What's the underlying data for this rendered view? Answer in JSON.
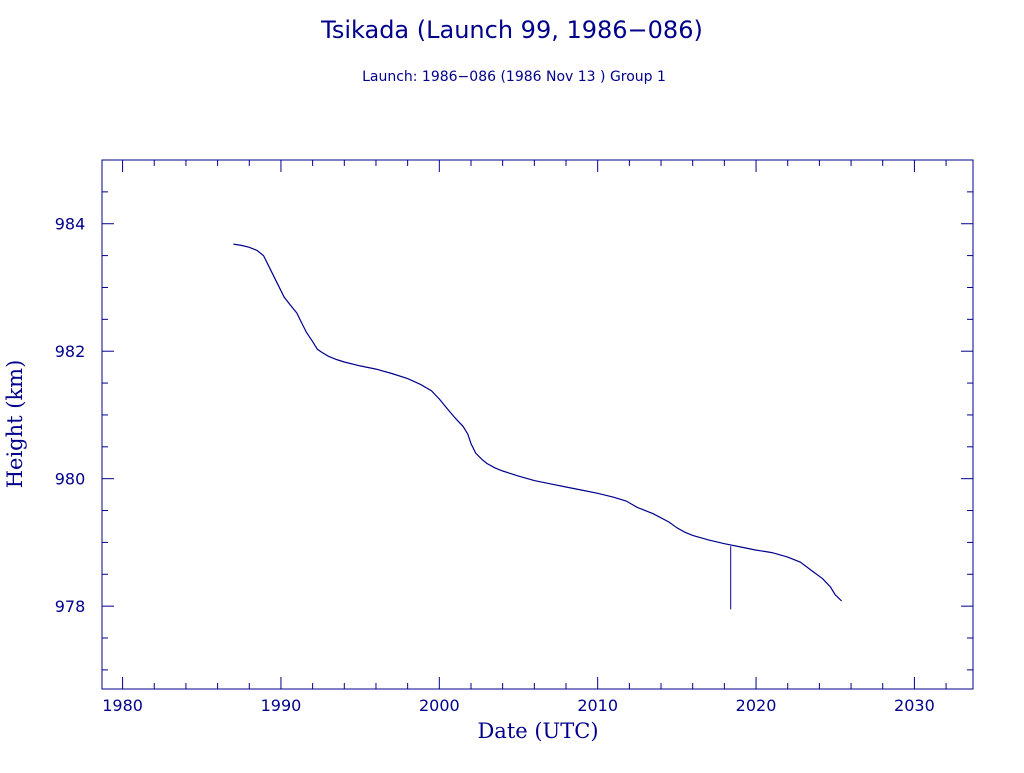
{
  "chart_data": {
    "type": "line",
    "title": "Tsikada (Launch 99, 1986−086)",
    "subtitle": "Launch: 1986−086  (1986 Nov 13 )  Group 1",
    "xlabel": "Date (UTC)",
    "ylabel": "Height (km)",
    "xlim": [
      1978.7,
      2033.7
    ],
    "ylim": [
      976.7,
      985.0
    ],
    "x_ticks": [
      "1980",
      "1990",
      "2000",
      "2010",
      "2020",
      "2030"
    ],
    "x_tick_values": [
      1980,
      1990,
      2000,
      2010,
      2020,
      2030
    ],
    "y_ticks": [
      "978",
      "980",
      "982",
      "984"
    ],
    "y_tick_values": [
      978,
      980,
      982,
      984
    ],
    "color": "#00008b",
    "series": [
      {
        "x": [
          1987.0,
          1987.5,
          1988.0,
          1988.5,
          1988.9,
          1989.2,
          1989.5,
          1989.8,
          1990.2,
          1990.6,
          1991.0,
          1991.3,
          1991.6,
          1992.0,
          1992.3,
          1992.6,
          1993.0,
          1993.5,
          1994.0,
          1995.0,
          1996.0,
          1997.0,
          1998.0,
          1998.8,
          1999.5,
          2000.0,
          2000.5,
          2001.0,
          2001.5,
          2001.8,
          2002.0,
          2002.3,
          2002.7,
          2003.0,
          2003.5,
          2004.0,
          2005.0,
          2006.0,
          2007.0,
          2008.0,
          2009.0,
          2010.0,
          2011.0,
          2011.8,
          2012.5,
          2013.5,
          2014.5,
          2015.0,
          2015.5,
          2016.0,
          2017.0,
          2018.0,
          2019.0,
          2020.0,
          2021.0,
          2022.0,
          2022.8,
          2023.5,
          2024.2,
          2024.7,
          2025.0,
          2025.4
        ],
        "y": [
          983.68,
          983.66,
          983.63,
          983.58,
          983.5,
          983.35,
          983.2,
          983.05,
          982.85,
          982.72,
          982.6,
          982.45,
          982.3,
          982.15,
          982.03,
          981.98,
          981.92,
          981.87,
          981.83,
          981.77,
          981.72,
          981.65,
          981.57,
          981.48,
          981.38,
          981.25,
          981.1,
          980.95,
          980.82,
          980.7,
          980.55,
          980.4,
          980.3,
          980.24,
          980.17,
          980.12,
          980.04,
          979.97,
          979.92,
          979.87,
          979.82,
          979.77,
          979.71,
          979.65,
          979.55,
          979.45,
          979.32,
          979.23,
          979.16,
          979.11,
          979.04,
          978.98,
          978.93,
          978.88,
          978.84,
          978.77,
          978.69,
          978.56,
          978.43,
          978.3,
          978.18,
          978.08
        ]
      }
    ],
    "spike": {
      "x": 2018.4,
      "y_top": 978.94,
      "y_bottom": 977.95
    }
  }
}
